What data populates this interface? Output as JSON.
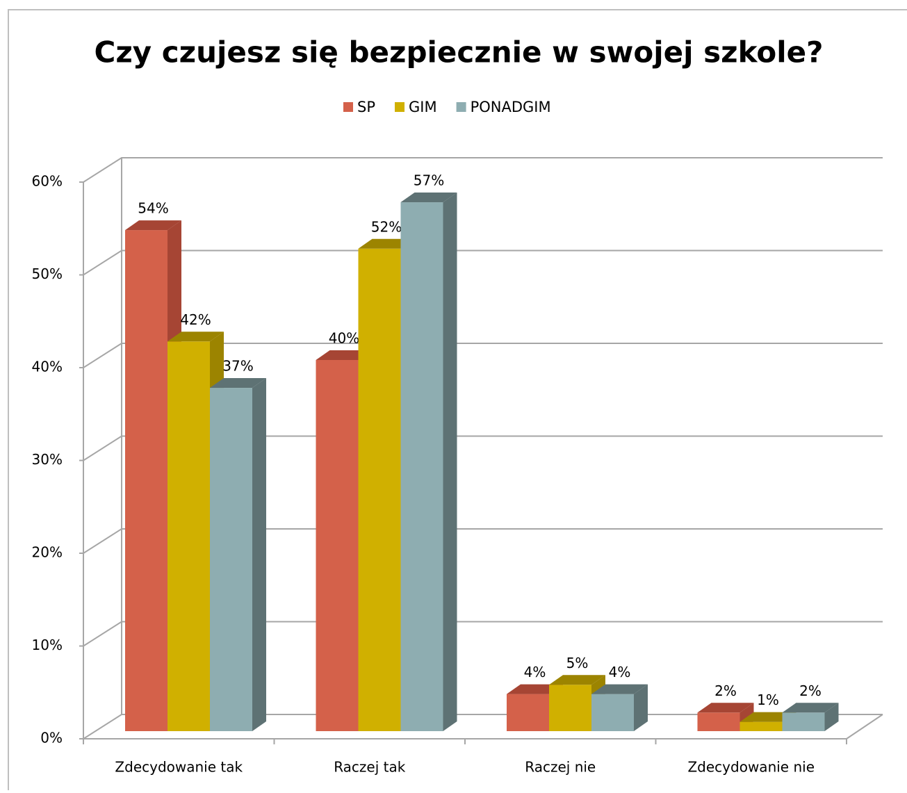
{
  "chart_data": {
    "type": "bar3d",
    "title": "Czy czujesz się bezpiecznie w swojej szkole?",
    "categories": [
      "Zdecydowanie tak",
      "Raczej tak",
      "Raczej nie",
      "Zdecydowanie nie"
    ],
    "series": [
      {
        "name": "SP",
        "color": "#d4614a",
        "side_color": "#a64534",
        "values": [
          54,
          40,
          4,
          2
        ],
        "value_labels": [
          "54%",
          "40%",
          "4%",
          "2%"
        ]
      },
      {
        "name": "GIM",
        "color": "#d0b000",
        "side_color": "#9c8400",
        "values": [
          42,
          52,
          5,
          1
        ],
        "value_labels": [
          "42%",
          "52%",
          "5%",
          "1%"
        ]
      },
      {
        "name": "PONADGIM",
        "color": "#8eadb1",
        "side_color": "#5e7274",
        "values": [
          37,
          57,
          4,
          2
        ],
        "value_labels": [
          "37%",
          "57%",
          "4%",
          "2%"
        ]
      }
    ],
    "ylim": [
      0,
      60
    ],
    "yticks": [
      {
        "value": 0,
        "label": "0%"
      },
      {
        "value": 10,
        "label": "10%"
      },
      {
        "value": 20,
        "label": "20%"
      },
      {
        "value": 30,
        "label": "30%"
      },
      {
        "value": 40,
        "label": "40%"
      },
      {
        "value": 50,
        "label": "50%"
      },
      {
        "value": 60,
        "label": "60%"
      }
    ],
    "grid": true,
    "legend": "top"
  }
}
